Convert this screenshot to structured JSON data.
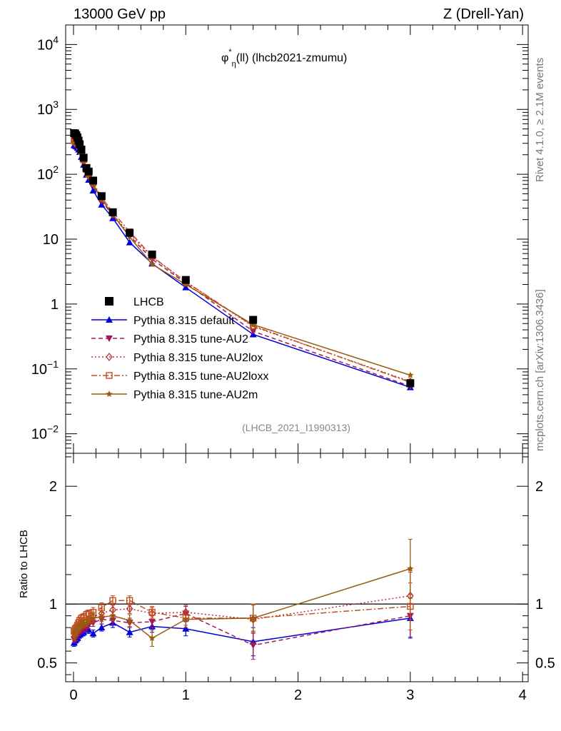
{
  "header": {
    "energy_label": "13000 GeV pp",
    "process_label": "Z (Drell-Yan)"
  },
  "side_labels": {
    "rivet": "Rivet 4.1.0, ≥ 2.1M events",
    "mcplots": "mcplots.cern.ch [arXiv:1306.3436]"
  },
  "chart_data": {
    "type": "line",
    "title": "φ*η(ll) (lhcb2021-zmumu)",
    "title_parts": {
      "main": "φ",
      "sup": "*",
      "sub": "η",
      "rest": "(ll) (lhcb2021-zmumu)"
    },
    "analysis_id": "(LHCB_2021_I1990313)",
    "xlabel": "",
    "ylabel": "",
    "xlim": [
      -0.07,
      4.05
    ],
    "ylim": [
      0.005,
      20000
    ],
    "yscale": "log",
    "ratio_ylabel": "Ratio to LHCB",
    "ratio_ylim": [
      0.34,
      2.28
    ],
    "x_ticks": [
      "0",
      "1",
      "2",
      "3",
      "4"
    ],
    "y_ticks_main": [
      "10^-2",
      "10^-1",
      "1",
      "10",
      "10^2",
      "10^3",
      "10^4"
    ],
    "y_ticks_ratio": [
      "0.5",
      "1",
      "2"
    ],
    "x": [
      0.005,
      0.015,
      0.025,
      0.035,
      0.045,
      0.055,
      0.07,
      0.09,
      0.115,
      0.135,
      0.175,
      0.25,
      0.35,
      0.5,
      0.7,
      1.0,
      1.6,
      3.0
    ],
    "data": {
      "name": "LHCB",
      "values": [
        430,
        425,
        400,
        370,
        330,
        290,
        240,
        180,
        125,
        110,
        80,
        46,
        26,
        12.5,
        5.8,
        2.35,
        0.57,
        0.06
      ]
    },
    "series": [
      {
        "name": "Pythia 8.315 default",
        "color": "#0000dd",
        "dash": "",
        "marker": "triangle-up",
        "values": [
          280,
          275,
          268,
          255,
          240,
          220,
          185,
          140,
          98,
          82,
          56,
          34,
          21,
          8.9,
          4.2,
          1.8,
          0.34,
          0.052
        ],
        "ratio": [
          0.67,
          0.69,
          0.7,
          0.71,
          0.73,
          0.74,
          0.75,
          0.76,
          0.79,
          0.78,
          0.75,
          0.8,
          0.84,
          0.76,
          0.81,
          0.79,
          0.68,
          0.88
        ],
        "ratio_err": [
          0.03,
          0.03,
          0.03,
          0.03,
          0.03,
          0.03,
          0.03,
          0.03,
          0.03,
          0.03,
          0.03,
          0.03,
          0.04,
          0.04,
          0.05,
          0.06,
          0.12,
          0.17
        ]
      },
      {
        "name": "Pythia 8.315 tune-AU2",
        "color": "#a0185a",
        "dash": "6,4",
        "marker": "triangle-down",
        "values": [
          300,
          290,
          280,
          270,
          255,
          238,
          200,
          150,
          106,
          90,
          67,
          39,
          23,
          11.2,
          4.9,
          2.1,
          0.38,
          0.054
        ],
        "ratio": [
          0.7,
          0.71,
          0.72,
          0.74,
          0.76,
          0.77,
          0.78,
          0.79,
          0.8,
          0.82,
          0.84,
          0.87,
          0.86,
          0.84,
          0.85,
          0.92,
          0.65,
          0.9
        ],
        "ratio_err": [
          0.03,
          0.03,
          0.03,
          0.03,
          0.03,
          0.03,
          0.03,
          0.03,
          0.03,
          0.03,
          0.03,
          0.04,
          0.04,
          0.04,
          0.05,
          0.06,
          0.12,
          0.18
        ]
      },
      {
        "name": "Pythia 8.315 tune-AU2lox",
        "color": "#c03030",
        "dash": "2,3",
        "marker": "diamond",
        "values": [
          320,
          310,
          300,
          290,
          275,
          255,
          215,
          160,
          115,
          98,
          72,
          42,
          24,
          12.0,
          5.3,
          2.2,
          0.45,
          0.064
        ],
        "ratio": [
          0.75,
          0.76,
          0.77,
          0.79,
          0.8,
          0.81,
          0.82,
          0.83,
          0.85,
          0.87,
          0.89,
          0.92,
          0.95,
          0.96,
          0.92,
          0.93,
          0.87,
          1.07
        ],
        "ratio_err": [
          0.03,
          0.03,
          0.03,
          0.03,
          0.03,
          0.03,
          0.03,
          0.03,
          0.03,
          0.03,
          0.04,
          0.04,
          0.04,
          0.04,
          0.05,
          0.06,
          0.12,
          0.2
        ]
      },
      {
        "name": "Pythia 8.315 tune-AU2loxx",
        "color": "#c05020",
        "dash": "8,3,2,3",
        "marker": "open-square",
        "values": [
          330,
          322,
          315,
          305,
          290,
          268,
          225,
          168,
          118,
          100,
          74,
          44,
          26,
          13.0,
          5.4,
          2.2,
          0.46,
          0.062
        ],
        "ratio": [
          0.77,
          0.79,
          0.8,
          0.82,
          0.84,
          0.86,
          0.88,
          0.89,
          0.91,
          0.92,
          0.93,
          0.97,
          1.03,
          1.03,
          0.93,
          0.88,
          0.88,
          0.98
        ],
        "ratio_err": [
          0.03,
          0.03,
          0.03,
          0.03,
          0.03,
          0.03,
          0.03,
          0.03,
          0.03,
          0.03,
          0.04,
          0.04,
          0.04,
          0.04,
          0.05,
          0.06,
          0.12,
          0.2
        ]
      },
      {
        "name": "Pythia 8.315 tune-AU2m",
        "color": "#9a5a10",
        "dash": "",
        "marker": "star",
        "values": [
          310,
          300,
          290,
          280,
          265,
          245,
          210,
          158,
          110,
          95,
          70,
          41,
          24,
          10.8,
          4.1,
          2.0,
          0.48,
          0.08
        ],
        "ratio": [
          0.72,
          0.75,
          0.76,
          0.78,
          0.79,
          0.8,
          0.83,
          0.84,
          0.84,
          0.86,
          0.88,
          0.89,
          0.9,
          0.86,
          0.71,
          0.87,
          0.88,
          1.3
        ],
        "ratio_err": [
          0.03,
          0.03,
          0.03,
          0.03,
          0.03,
          0.03,
          0.03,
          0.03,
          0.03,
          0.03,
          0.04,
          0.04,
          0.04,
          0.05,
          0.07,
          0.07,
          0.12,
          0.25
        ]
      }
    ],
    "legend_position": "center-left"
  }
}
